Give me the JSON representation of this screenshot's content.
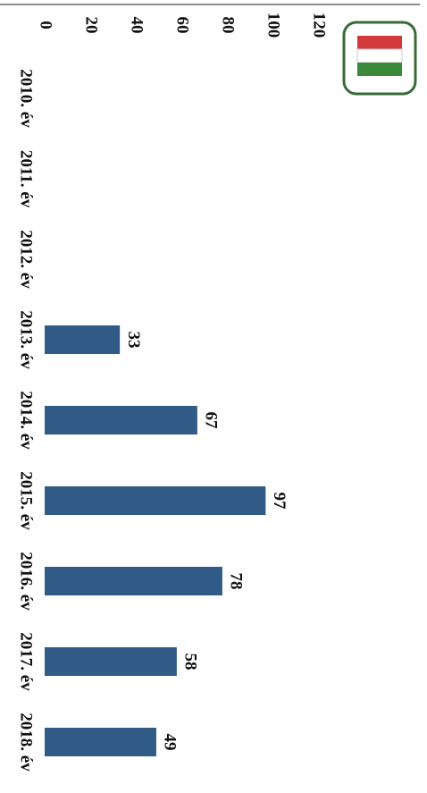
{
  "chart_data": {
    "type": "bar",
    "categories": [
      "2010. év",
      "2011. év",
      "2012. év",
      "2013. év",
      "2014. év",
      "2015. év",
      "2016. év",
      "2017. év",
      "2018. év"
    ],
    "values": [
      null,
      null,
      null,
      33,
      67,
      97,
      78,
      58,
      49
    ],
    "color": "#2f5b86",
    "ylim": [
      0,
      120
    ],
    "yticks": [
      0,
      20,
      40,
      60,
      80,
      100,
      120
    ]
  }
}
